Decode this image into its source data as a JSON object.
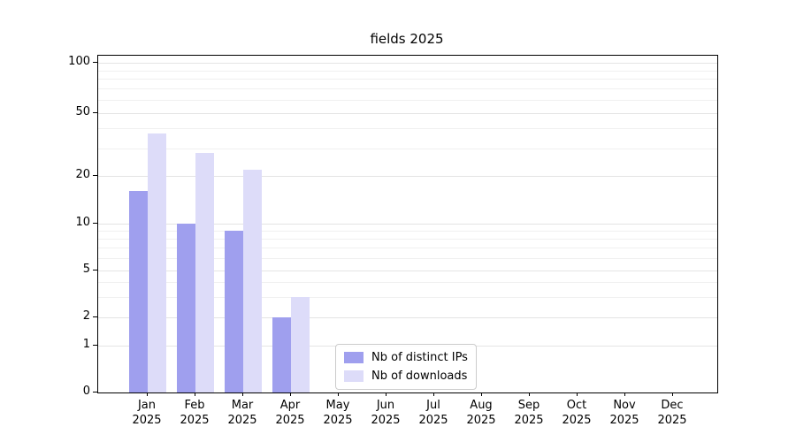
{
  "figure": {
    "title": "fields 2025"
  },
  "chart_data": {
    "type": "bar",
    "title": "fields 2025",
    "xlabel": "",
    "ylabel": "",
    "categories": [
      "Jan",
      "Feb",
      "Mar",
      "Apr",
      "May",
      "Jun",
      "Jul",
      "Aug",
      "Sep",
      "Oct",
      "Nov",
      "Dec"
    ],
    "category_year": "2025",
    "series": [
      {
        "name": "Nb of distinct IPs",
        "color": "#9f9fee",
        "values": [
          16,
          10,
          9,
          2,
          0,
          0,
          0,
          0,
          0,
          0,
          0,
          0
        ]
      },
      {
        "name": "Nb of downloads",
        "color": "#dddcf9",
        "values": [
          37,
          28,
          22,
          3,
          0,
          0,
          0,
          0,
          0,
          0,
          0,
          0
        ]
      }
    ],
    "yscale": "symlog",
    "yticks": [
      0,
      1,
      2,
      5,
      10,
      20,
      50,
      100
    ],
    "y_minor_gridlines": [
      3,
      4,
      6,
      7,
      8,
      9,
      30,
      40,
      60,
      70,
      80,
      90
    ],
    "ylim": [
      0,
      110
    ],
    "grid": true,
    "legend_position": "lower center inside"
  }
}
